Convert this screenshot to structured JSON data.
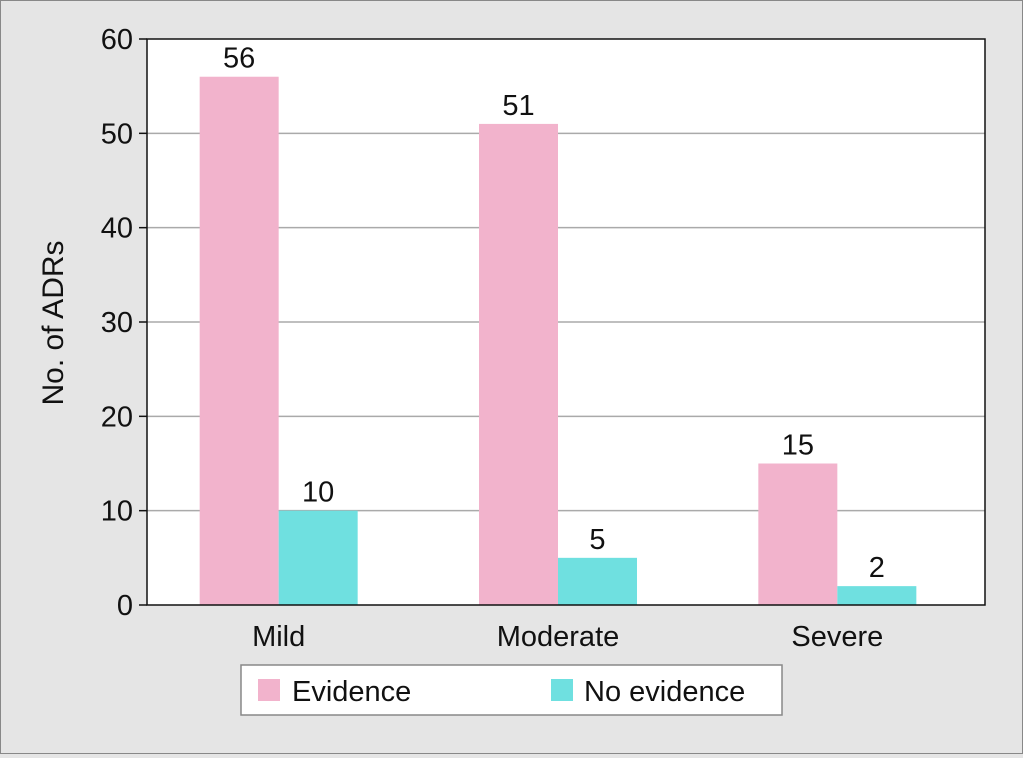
{
  "chart_data": {
    "type": "bar",
    "categories": [
      "Mild",
      "Moderate",
      "Severe"
    ],
    "series": [
      {
        "name": "Evidence",
        "values": [
          56,
          51,
          15
        ],
        "color": "#f2b3cc"
      },
      {
        "name": "No evidence",
        "values": [
          10,
          5,
          2
        ],
        "color": "#6fe0e0"
      }
    ],
    "data_labels": [
      [
        "56",
        "51",
        "15"
      ],
      [
        "10",
        "5",
        "2"
      ]
    ],
    "title": "",
    "xlabel": "",
    "ylabel": "No. of ADRs",
    "ylim": [
      0,
      60
    ],
    "yticks": [
      0,
      10,
      20,
      30,
      40,
      50,
      60
    ],
    "grid": true,
    "legend_position": "bottom"
  }
}
